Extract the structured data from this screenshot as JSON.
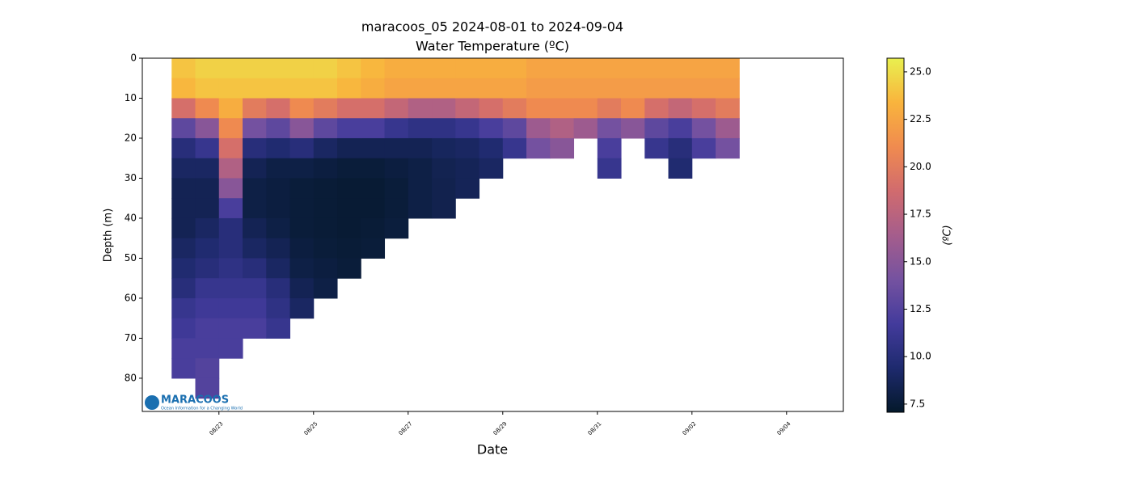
{
  "chart_data": {
    "type": "heatmap",
    "title": "maracoos_05 2024-08-01 to 2024-09-04",
    "subtitle": "Water Temperature (ºC)",
    "x_label": "Date",
    "y_label": "Depth (m)",
    "colorbar_label": "(ºC)",
    "logo": {
      "name": "MARACOOS",
      "tagline": "Ocean Information for a Changing World"
    },
    "x": [
      22.25,
      22.75,
      23.25,
      23.75,
      24.25,
      24.75,
      25.25,
      25.75,
      26.25,
      26.75,
      27.25,
      27.75,
      28.25,
      28.75,
      29.25,
      29.75,
      30.25,
      30.75,
      31.25,
      31.75,
      32.25,
      32.75,
      33.25,
      33.75
    ],
    "y": [
      2.5,
      7.5,
      12.5,
      17.5,
      22.5,
      27.5,
      32.5,
      37.5,
      42.5,
      47.5,
      52.5,
      57.5,
      62.5,
      67.5,
      72.5,
      77.5,
      82.5
    ],
    "values": [
      [
        24,
        23.5,
        19,
        13,
        10,
        9,
        8.5,
        8.5,
        8.5,
        9,
        9.5,
        10,
        11,
        11.5,
        12,
        12,
        null
      ],
      [
        24.5,
        24,
        21,
        15,
        11,
        9,
        8.5,
        8.5,
        9,
        9.5,
        10,
        11,
        11.5,
        12,
        12,
        12.5,
        12.5
      ],
      [
        24.5,
        24,
        23,
        21,
        19,
        17,
        15,
        12,
        10,
        10,
        10.5,
        11,
        11.5,
        12,
        12,
        null,
        null
      ],
      [
        24.5,
        24,
        20,
        14,
        10,
        8.5,
        8,
        8,
        8.5,
        9,
        10,
        11,
        11.5,
        12,
        null,
        null,
        null
      ],
      [
        24.5,
        24,
        19,
        13,
        9.5,
        8,
        7.8,
        7.8,
        8,
        8.5,
        9,
        10,
        10.5,
        11,
        null,
        null,
        null
      ],
      [
        24.5,
        24,
        21,
        15,
        10,
        8,
        7.6,
        7.6,
        7.6,
        7.8,
        8,
        8.5,
        9,
        null,
        null,
        null,
        null
      ],
      [
        24.5,
        24,
        20,
        13,
        9,
        7.8,
        7.5,
        7.5,
        7.5,
        7.6,
        7.8,
        8,
        null,
        null,
        null,
        null,
        null
      ],
      [
        24,
        23.5,
        19,
        12,
        8.5,
        7.6,
        7.4,
        7.4,
        7.4,
        7.5,
        7.6,
        null,
        null,
        null,
        null,
        null,
        null
      ],
      [
        23.5,
        23,
        19,
        12,
        8.5,
        7.6,
        7.4,
        7.4,
        7.5,
        7.6,
        null,
        null,
        null,
        null,
        null,
        null,
        null
      ],
      [
        23,
        22.5,
        18,
        11,
        8.5,
        7.8,
        7.6,
        7.6,
        7.7,
        null,
        null,
        null,
        null,
        null,
        null,
        null,
        null
      ],
      [
        23,
        22.5,
        17,
        10.5,
        8.5,
        8,
        8,
        8,
        null,
        null,
        null,
        null,
        null,
        null,
        null,
        null,
        null
      ],
      [
        23,
        22.5,
        17,
        10.5,
        8.8,
        8.4,
        8.3,
        8.3,
        null,
        null,
        null,
        null,
        null,
        null,
        null,
        null,
        null
      ],
      [
        23,
        22.5,
        18,
        11,
        9,
        8.6,
        8.6,
        null,
        null,
        null,
        null,
        null,
        null,
        null,
        null,
        null,
        null
      ],
      [
        23,
        22.5,
        19,
        12,
        9.5,
        9,
        null,
        null,
        null,
        null,
        null,
        null,
        null,
        null,
        null,
        null,
        null
      ],
      [
        23,
        22.5,
        20,
        13,
        11,
        null,
        null,
        null,
        null,
        null,
        null,
        null,
        null,
        null,
        null,
        null,
        null
      ],
      [
        22.5,
        22,
        21,
        16,
        14,
        null,
        null,
        null,
        null,
        null,
        null,
        null,
        null,
        null,
        null,
        null,
        null
      ],
      [
        22.5,
        22,
        21,
        17,
        15,
        null,
        null,
        null,
        null,
        null,
        null,
        null,
        null,
        null,
        null,
        null,
        null
      ],
      [
        22.5,
        22,
        21,
        16,
        null,
        null,
        null,
        null,
        null,
        null,
        null,
        null,
        null,
        null,
        null,
        null,
        null
      ],
      [
        22.5,
        22,
        20,
        14,
        12,
        11,
        null,
        null,
        null,
        null,
        null,
        null,
        null,
        null,
        null,
        null,
        null
      ],
      [
        22.5,
        22,
        21,
        15,
        null,
        null,
        null,
        null,
        null,
        null,
        null,
        null,
        null,
        null,
        null,
        null,
        null
      ],
      [
        22.5,
        22,
        19,
        13,
        11,
        null,
        null,
        null,
        null,
        null,
        null,
        null,
        null,
        null,
        null,
        null,
        null
      ],
      [
        22.5,
        22,
        18,
        12,
        10,
        9.5,
        null,
        null,
        null,
        null,
        null,
        null,
        null,
        null,
        null,
        null,
        null
      ],
      [
        22.5,
        22,
        19,
        14,
        12,
        null,
        null,
        null,
        null,
        null,
        null,
        null,
        null,
        null,
        null,
        null,
        null
      ],
      [
        22.5,
        22,
        20,
        16,
        14,
        null,
        null,
        null,
        null,
        null,
        null,
        null,
        null,
        null,
        null,
        null,
        null
      ]
    ],
    "xlim": [
      21.38,
      36.2
    ],
    "xticks": [
      {
        "value": 23,
        "label": "08/23"
      },
      {
        "value": 25,
        "label": "08/25"
      },
      {
        "value": 27,
        "label": "08/27"
      },
      {
        "value": 29,
        "label": "08/29"
      },
      {
        "value": 31,
        "label": "08/31"
      },
      {
        "value": 33,
        "label": "09/02"
      },
      {
        "value": 35,
        "label": "09/04"
      }
    ],
    "ylim": [
      88.3,
      0
    ],
    "yticks": [
      0,
      10,
      20,
      30,
      40,
      50,
      60,
      70,
      80
    ],
    "clim": [
      7.07,
      25.72
    ],
    "cticks": [
      7.5,
      {
        "value": 10,
        "label": "10.0"
      },
      12.5,
      {
        "value": 15,
        "label": "15.0"
      },
      17.5,
      {
        "value": 20,
        "label": "20.0"
      },
      22.5,
      {
        "value": 25,
        "label": "25.0"
      }
    ],
    "colormap": [
      "#04192b",
      "#1e2a6e",
      "#433b9c",
      "#7552a0",
      "#a55d8c",
      "#d16b6e",
      "#f08b4f",
      "#f9b43d",
      "#e9f04f"
    ]
  }
}
